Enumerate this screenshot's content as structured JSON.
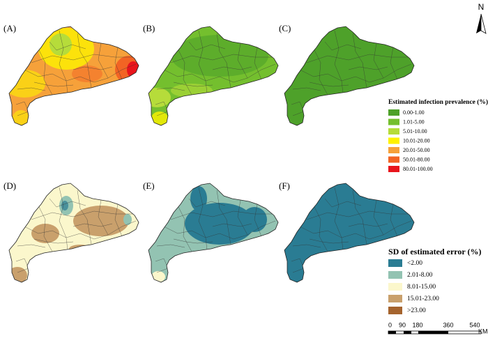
{
  "panels": [
    "(A)",
    "(B)",
    "(C)",
    "(D)",
    "(E)",
    "(F)"
  ],
  "legend_prevalence": {
    "title": "Estimated infection prevalence (%)",
    "items": [
      {
        "label": "0.00-1.00",
        "color": "#4ea12a"
      },
      {
        "label": "1.01-5.00",
        "color": "#74bf2e"
      },
      {
        "label": "5.01-10.00",
        "color": "#b6dc3a"
      },
      {
        "label": "10.01-20.00",
        "color": "#fef200"
      },
      {
        "label": "20.01-50.00",
        "color": "#f6a13a"
      },
      {
        "label": "50.01-80.00",
        "color": "#f26424"
      },
      {
        "label": "80.01-100.00",
        "color": "#e8151c"
      }
    ]
  },
  "legend_sd": {
    "title": "SD of estimated error (%)",
    "items": [
      {
        "label": "<2.00",
        "color": "#2a7c93"
      },
      {
        "label": "2.01-8.00",
        "color": "#93c3b2"
      },
      {
        "label": "8.01-15.00",
        "color": "#fbf7cc"
      },
      {
        "label": "15.01-23.00",
        "color": "#c9a06c"
      },
      {
        "label": ">23.00",
        "color": "#a5642e"
      }
    ]
  },
  "scale_bar": {
    "labels": [
      "0",
      "90",
      "180",
      "360",
      "540"
    ],
    "unit": "KM"
  },
  "north": "N"
}
